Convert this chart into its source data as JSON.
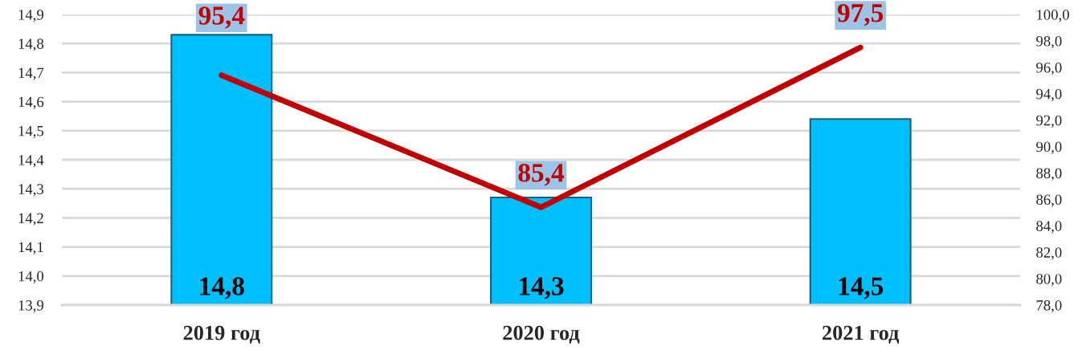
{
  "chart_data": {
    "type": "bar",
    "categories": [
      "2019 год",
      "2020 год",
      "2021 год"
    ],
    "series": [
      {
        "color": "#00bfff",
        "values": [
          14.83,
          14.27,
          14.54
        ],
        "value_labels": [
          "14,8",
          "14,3",
          "14,5"
        ]
      },
      {
        "type": "line",
        "axis": "y2",
        "color": "#c00000",
        "values": [
          95.4,
          85.4,
          97.5
        ],
        "value_labels": [
          "95,4",
          "85,4",
          "97,5"
        ]
      }
    ],
    "ylim": [
      13.9,
      14.9
    ],
    "yticks": [
      {
        "value": 13.9,
        "label": "13,9"
      },
      {
        "value": 14.0,
        "label": "14,0"
      },
      {
        "value": 14.1,
        "label": "14,1"
      },
      {
        "value": 14.2,
        "label": "14,2"
      },
      {
        "value": 14.3,
        "label": "14,3"
      },
      {
        "value": 14.4,
        "label": "14,4"
      },
      {
        "value": 14.5,
        "label": "14,5"
      },
      {
        "value": 14.6,
        "label": "14,6"
      },
      {
        "value": 14.7,
        "label": "14,7"
      },
      {
        "value": 14.8,
        "label": "14,8"
      },
      {
        "value": 14.9,
        "label": "14,9"
      }
    ],
    "y2lim": [
      78,
      100
    ],
    "y2ticks": [
      {
        "value": 78,
        "label": "78,0"
      },
      {
        "value": 80,
        "label": "80,0"
      },
      {
        "value": 82,
        "label": "82,0"
      },
      {
        "value": 84,
        "label": "84,0"
      },
      {
        "value": 86,
        "label": "86,0"
      },
      {
        "value": 88,
        "label": "88,0"
      },
      {
        "value": 90,
        "label": "90,0"
      },
      {
        "value": 92,
        "label": "92,0"
      },
      {
        "value": 94,
        "label": "94,0"
      },
      {
        "value": 96,
        "label": "96,0"
      },
      {
        "value": 98,
        "label": "98,0"
      },
      {
        "value": 100,
        "label": "100,0"
      }
    ],
    "grid": "y"
  }
}
